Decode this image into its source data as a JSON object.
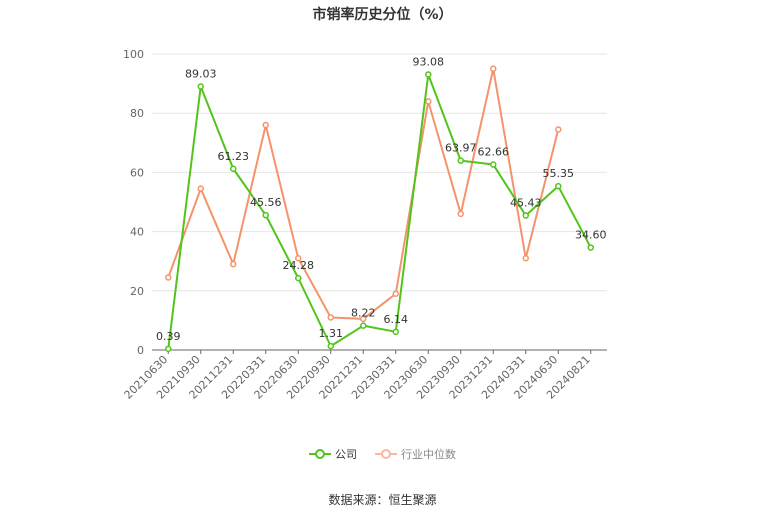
{
  "source_text": "数据来源：恒生聚源",
  "chart_data": {
    "type": "line",
    "title": "市销率历史分位（%）",
    "categories": [
      "20210630",
      "20210930",
      "20211231",
      "20220331",
      "20220630",
      "20220930",
      "20221231",
      "20230331",
      "20230630",
      "20230930",
      "20231231",
      "20240331",
      "20240630",
      "20240821"
    ],
    "ylim": [
      0,
      100
    ],
    "yticks": [
      0,
      20,
      40,
      60,
      80,
      100
    ],
    "grid": true,
    "legend_position": "bottom",
    "series": [
      {
        "name": "公司",
        "color": "#52c41a",
        "values": [
          0.39,
          89.03,
          61.23,
          45.56,
          24.28,
          1.31,
          8.22,
          6.14,
          93.08,
          63.97,
          62.66,
          45.43,
          55.35,
          34.6
        ],
        "labels": [
          "0.39",
          "89.03",
          "61.23",
          "45.56",
          "24.28",
          "1.31",
          "8.22",
          "6.14",
          "93.08",
          "63.97",
          "62.66",
          "45.43",
          "55.35",
          "34.60"
        ]
      },
      {
        "name": "行业中位数",
        "color": "#f5936b",
        "values": [
          24.5,
          54.5,
          29.0,
          76.0,
          31.0,
          11.0,
          10.5,
          19.0,
          84.0,
          46.0,
          95.0,
          31.0,
          74.5,
          null
        ]
      }
    ]
  }
}
